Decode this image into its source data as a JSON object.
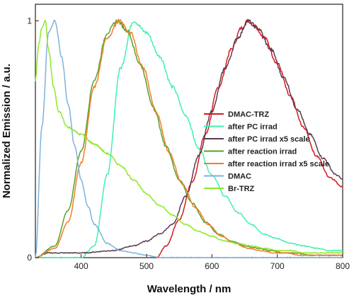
{
  "chart_data": {
    "type": "line",
    "xlabel": "Wavelength / nm",
    "ylabel": "Normalized Emission / a.u.",
    "xlim": [
      330,
      800
    ],
    "ylim": [
      0,
      1.07
    ],
    "x_ticks": [
      400,
      500,
      600,
      700,
      800
    ],
    "y_ticks": [
      0,
      1
    ],
    "grid": false,
    "legend_position": "right",
    "series": [
      {
        "name": "DMAC-TRZ",
        "color": "#d7191c",
        "x": [
          515,
          530,
          550,
          570,
          590,
          610,
          630,
          645,
          655,
          665,
          680,
          700,
          720,
          740,
          760,
          780,
          800
        ],
        "y": [
          0.0,
          0.05,
          0.16,
          0.32,
          0.52,
          0.72,
          0.88,
          0.97,
          1.0,
          0.98,
          0.93,
          0.82,
          0.68,
          0.55,
          0.43,
          0.34,
          0.3
        ]
      },
      {
        "name": "after PC irrad",
        "color": "#3ff0b0",
        "x": [
          330,
          400,
          420,
          440,
          460,
          480,
          500,
          520,
          540,
          560,
          580,
          600,
          620,
          640,
          660,
          680,
          700,
          720,
          740,
          760,
          780,
          800
        ],
        "y": [
          0.0,
          0.0,
          0.05,
          0.35,
          0.8,
          1.0,
          0.95,
          0.85,
          0.72,
          0.6,
          0.46,
          0.35,
          0.26,
          0.19,
          0.14,
          0.1,
          0.08,
          0.06,
          0.05,
          0.04,
          0.03,
          0.03
        ]
      },
      {
        "name": "after PC irrad x5 scale",
        "color": "#5b3a4f",
        "x": [
          330,
          350,
          400,
          450,
          480,
          500,
          520,
          540,
          560,
          580,
          600,
          620,
          640,
          655,
          670,
          690,
          710,
          730,
          750,
          770,
          790,
          800
        ],
        "y": [
          0.0,
          0.02,
          0.02,
          0.03,
          0.05,
          0.07,
          0.1,
          0.14,
          0.26,
          0.43,
          0.62,
          0.8,
          0.93,
          1.0,
          0.97,
          0.88,
          0.76,
          0.63,
          0.52,
          0.42,
          0.35,
          0.33
        ]
      },
      {
        "name": "after reaction irrad",
        "color": "#5aa02c",
        "x": [
          330,
          360,
          380,
          400,
          420,
          440,
          455,
          470,
          490,
          510,
          530,
          550,
          570,
          590,
          610,
          630,
          650,
          670,
          690,
          710,
          730,
          750,
          770,
          790,
          800
        ],
        "y": [
          0.0,
          0.05,
          0.2,
          0.45,
          0.75,
          0.95,
          1.0,
          0.96,
          0.82,
          0.64,
          0.47,
          0.33,
          0.23,
          0.15,
          0.1,
          0.07,
          0.05,
          0.04,
          0.03,
          0.02,
          0.02,
          0.01,
          0.01,
          0.01,
          0.01
        ]
      },
      {
        "name": "after reaction irrad x5 scale",
        "color": "#f07e26",
        "x": [
          330,
          360,
          380,
          400,
          420,
          440,
          458,
          475,
          495,
          515,
          535,
          555,
          575,
          595,
          615,
          635,
          655,
          675,
          695,
          715,
          735,
          755,
          775,
          800
        ],
        "y": [
          0.0,
          0.04,
          0.15,
          0.4,
          0.72,
          0.93,
          1.0,
          0.95,
          0.8,
          0.61,
          0.44,
          0.31,
          0.21,
          0.14,
          0.09,
          0.06,
          0.04,
          0.03,
          0.02,
          0.02,
          0.01,
          0.01,
          0.01,
          0.01
        ]
      },
      {
        "name": "DMAC",
        "color": "#7fb2dc",
        "x": [
          330,
          340,
          350,
          360,
          370,
          380,
          390,
          400,
          410,
          420,
          440,
          460,
          480,
          500,
          520,
          550,
          600,
          700,
          800
        ],
        "y": [
          0.0,
          0.55,
          0.95,
          1.0,
          0.85,
          0.65,
          0.47,
          0.33,
          0.22,
          0.14,
          0.06,
          0.03,
          0.02,
          0.01,
          0.0,
          0.0,
          0.0,
          0.0,
          0.0
        ]
      },
      {
        "name": "Br-TRZ",
        "color": "#8ee82a",
        "x": [
          330,
          335,
          340,
          345,
          350,
          358,
          365,
          380,
          400,
          420,
          440,
          460,
          480,
          500,
          520,
          540,
          560,
          580,
          600,
          620,
          640,
          660,
          680,
          700,
          720,
          740,
          760,
          780,
          800
        ],
        "y": [
          0.75,
          0.9,
          0.97,
          1.0,
          0.88,
          0.72,
          0.62,
          0.55,
          0.52,
          0.48,
          0.44,
          0.39,
          0.33,
          0.27,
          0.22,
          0.18,
          0.14,
          0.11,
          0.09,
          0.07,
          0.06,
          0.05,
          0.04,
          0.03,
          0.03,
          0.02,
          0.02,
          0.02,
          0.02
        ]
      }
    ]
  }
}
